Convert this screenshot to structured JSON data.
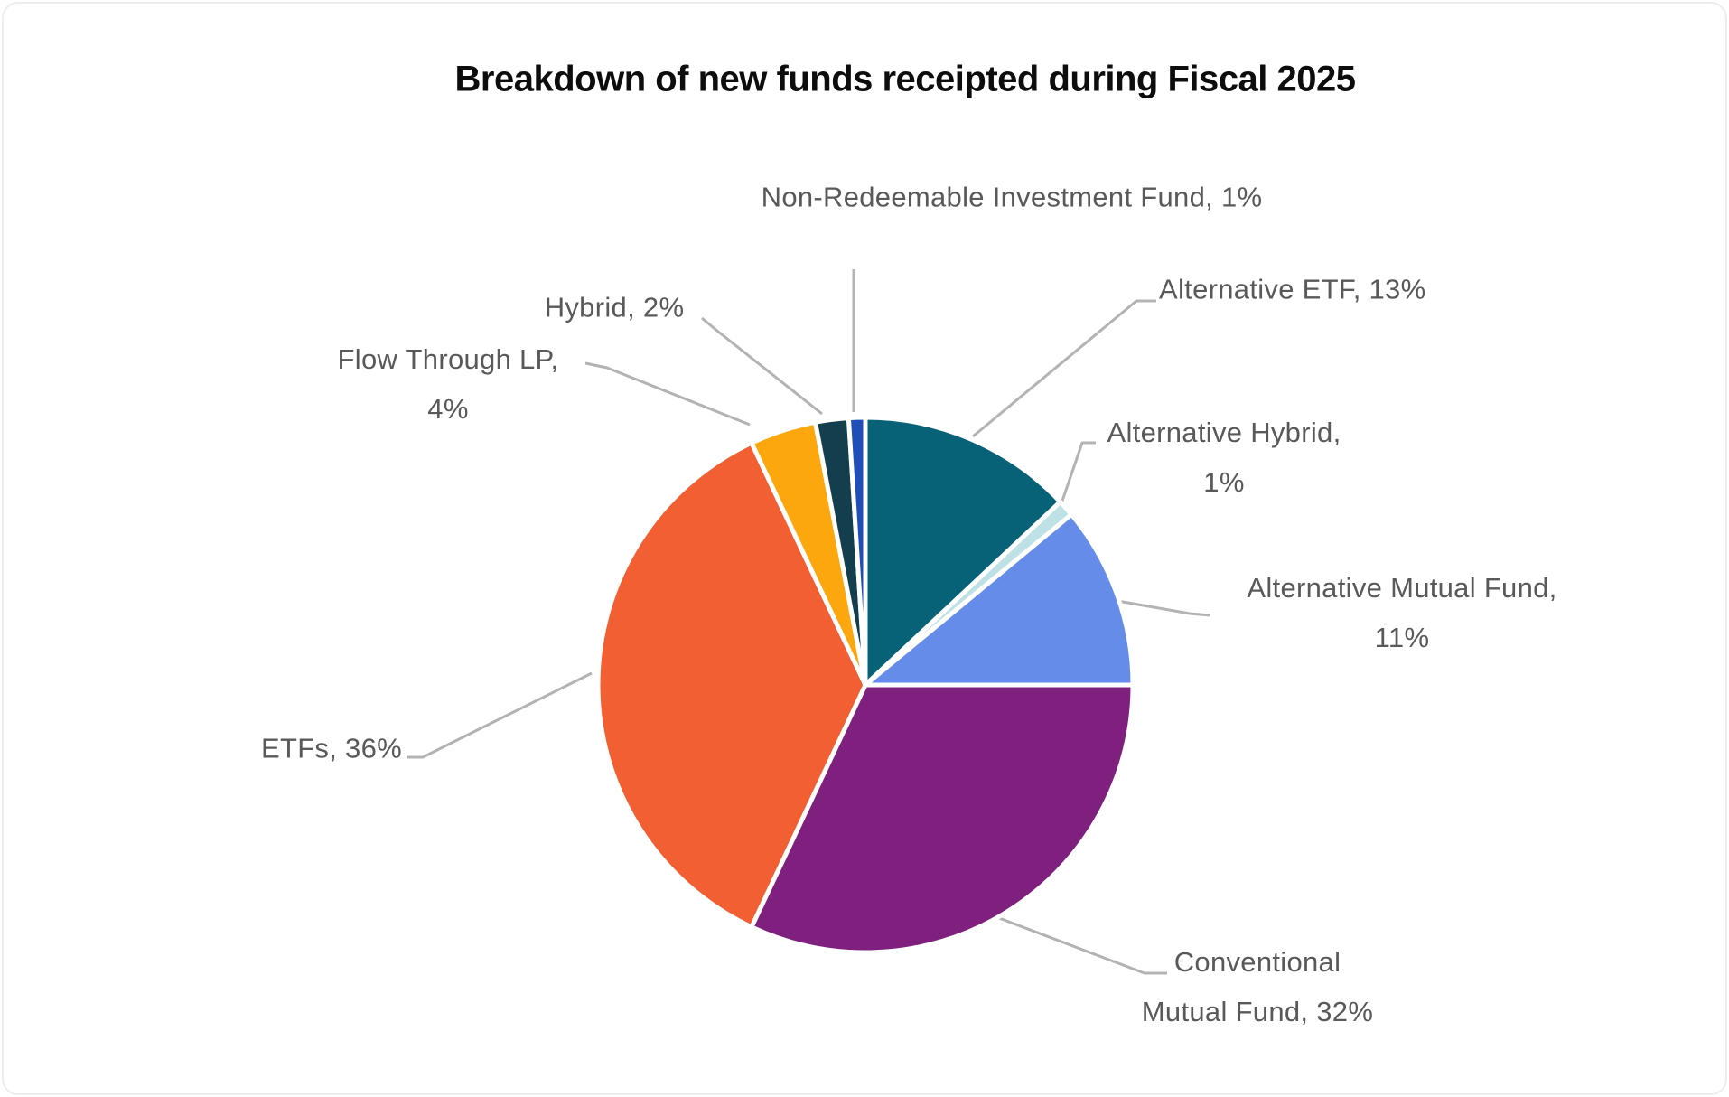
{
  "chart_data": {
    "type": "pie",
    "title": "Breakdown of new funds receipted during Fiscal 2025",
    "unit": "%",
    "direction": "clockwise",
    "start_angle_deg": 0,
    "categories": [
      "Alternative ETF",
      "Alternative Hybrid",
      "Alternative Mutual Fund",
      "Conventional Mutual Fund",
      "ETFs",
      "Flow Through LP",
      "Hybrid",
      "Non-Redeemable Investment Fund"
    ],
    "values": [
      13,
      1,
      11,
      32,
      36,
      4,
      2,
      1
    ],
    "slice_colors": [
      "#086277",
      "#bee1e5",
      "#648ce8",
      "#80207e",
      "#f15f32",
      "#fba70d",
      "#123e4e",
      "#1f4eb8"
    ],
    "labels": [
      {
        "lines": [
          "Alternative ETF, 13%"
        ]
      },
      {
        "lines": [
          "Alternative Hybrid,",
          "1%"
        ]
      },
      {
        "lines": [
          "Alternative Mutual Fund,",
          "11%"
        ]
      },
      {
        "lines": [
          "Conventional",
          "Mutual Fund, 32%"
        ]
      },
      {
        "lines": [
          "ETFs, 36%"
        ]
      },
      {
        "lines": [
          "Flow Through LP,",
          "4%"
        ]
      },
      {
        "lines": [
          "Hybrid, 2%"
        ]
      },
      {
        "lines": [
          "Non-Redeemable Investment Fund, 1%"
        ]
      }
    ],
    "legend": "none",
    "colors": {
      "label_text": "#595959",
      "title_text": "#0d0d0d",
      "leader_line": "#b3b3b3",
      "slice_border": "#ffffff"
    }
  }
}
